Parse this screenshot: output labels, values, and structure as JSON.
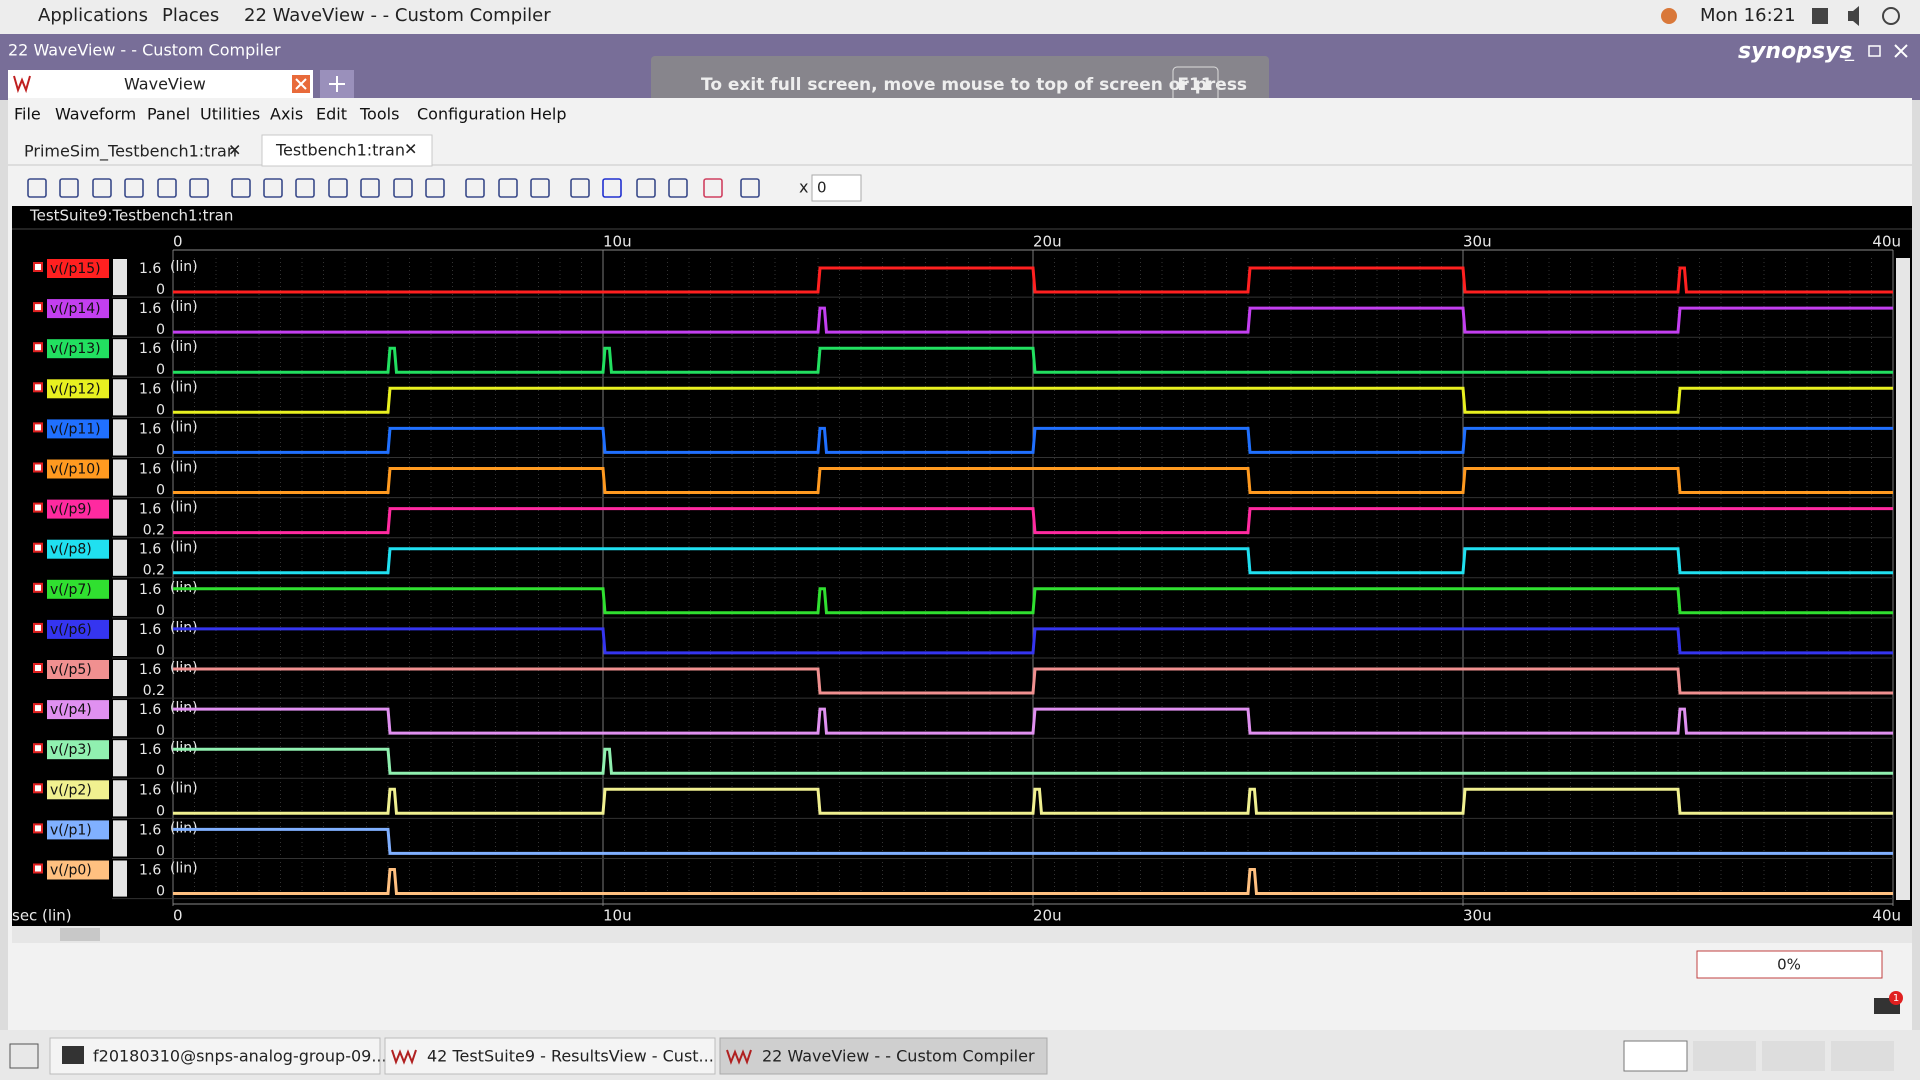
{
  "top_bar": {
    "menus": [
      "Applications",
      "Places",
      "22 WaveView -  - Custom Compiler"
    ],
    "clock": "Mon 16:21"
  },
  "window": {
    "title": "22 WaveView -  - Custom Compiler",
    "brand": "synopsys",
    "tab": "WaveView",
    "fullscreen_hint": "To exit full screen, move mouse to top of screen or press",
    "key": "F11"
  },
  "menu": [
    "File",
    "Waveform",
    "Panel",
    "Utilities",
    "Axis",
    "Edit",
    "Tools",
    "Configuration",
    "Help"
  ],
  "doc_tabs": [
    "PrimeSim_Testbench1:tran",
    "Testbench1:tran"
  ],
  "toolbar": {
    "x_label": "x",
    "x_value": "0"
  },
  "waveform": {
    "header": "TestSuite9:Testbench1:tran",
    "x_axis_label": "sec (lin)",
    "xlim": [
      0,
      40
    ],
    "xticks": [
      0,
      {
        "value": 10,
        "label": "10u"
      },
      {
        "value": 20,
        "label": "20u"
      },
      {
        "value": 30,
        "label": "30u"
      },
      {
        "value": 40,
        "label": "40u"
      }
    ],
    "signals": [
      {
        "name": "v(/p15)",
        "color": "#ff2020",
        "ymax": 1.6,
        "ymin": 0,
        "scale": "(lin)",
        "high": [
          [
            15,
            20
          ],
          [
            25,
            30
          ],
          [
            35,
            35.15
          ]
        ]
      },
      {
        "name": "v(/p14)",
        "color": "#c33ff0",
        "ymax": 1.6,
        "ymin": 0,
        "scale": "(lin)",
        "high": [
          [
            15,
            15.15
          ],
          [
            25,
            30
          ],
          [
            35,
            40
          ]
        ]
      },
      {
        "name": "v(/p13)",
        "color": "#22e060",
        "ymax": 1.6,
        "ymin": 0,
        "scale": "(lin)",
        "high": [
          [
            5,
            5.15
          ],
          [
            10,
            10.15
          ],
          [
            15,
            20
          ]
        ]
      },
      {
        "name": "v(/p12)",
        "color": "#e8f020",
        "ymax": 1.6,
        "ymin": 0,
        "scale": "(lin)",
        "high": [
          [
            5,
            30
          ],
          [
            35,
            40
          ]
        ]
      },
      {
        "name": "v(/p11)",
        "color": "#2070ff",
        "ymax": 1.6,
        "ymin": 0,
        "scale": "(lin)",
        "high": [
          [
            5,
            10
          ],
          [
            15,
            15.15
          ],
          [
            20,
            25
          ],
          [
            30,
            40
          ]
        ]
      },
      {
        "name": "v(/p10)",
        "color": "#ff9a20",
        "ymax": 1.6,
        "ymin": 0,
        "scale": "(lin)",
        "high": [
          [
            5,
            10
          ],
          [
            15,
            25
          ],
          [
            30,
            35
          ]
        ]
      },
      {
        "name": "v(/p9)",
        "color": "#ff2aa0",
        "ymax": 1.6,
        "ymin": 0.2,
        "scale": "(lin)",
        "high": [
          [
            5,
            20
          ],
          [
            25,
            40
          ]
        ]
      },
      {
        "name": "v(/p8)",
        "color": "#20e0f0",
        "ymax": 1.6,
        "ymin": 0.2,
        "scale": "(lin)",
        "high": [
          [
            5,
            25
          ],
          [
            30,
            35
          ]
        ]
      },
      {
        "name": "v(/p7)",
        "color": "#30e030",
        "ymax": 1.6,
        "ymin": 0,
        "scale": "(lin)",
        "high": [
          [
            0,
            10
          ],
          [
            15,
            15.15
          ],
          [
            20,
            35
          ]
        ]
      },
      {
        "name": "v(/p6)",
        "color": "#3535f0",
        "ymax": 1.6,
        "ymin": 0,
        "scale": "(lin)",
        "high": [
          [
            0,
            10
          ],
          [
            20,
            35
          ]
        ]
      },
      {
        "name": "v(/p5)",
        "color": "#f09090",
        "ymax": 1.6,
        "ymin": 0.2,
        "scale": "(lin)",
        "high": [
          [
            0,
            15
          ],
          [
            20,
            35
          ]
        ]
      },
      {
        "name": "v(/p4)",
        "color": "#e090f0",
        "ymax": 1.6,
        "ymin": 0,
        "scale": "(lin)",
        "high": [
          [
            0,
            5
          ],
          [
            15,
            15.15
          ],
          [
            20,
            25
          ],
          [
            35,
            35.15
          ]
        ]
      },
      {
        "name": "v(/p3)",
        "color": "#90f0b0",
        "ymax": 1.6,
        "ymin": 0,
        "scale": "(lin)",
        "high": [
          [
            0,
            5
          ],
          [
            10,
            10.15
          ]
        ]
      },
      {
        "name": "v(/p2)",
        "color": "#f0f090",
        "ymax": 1.6,
        "ymin": 0,
        "scale": "(lin)",
        "high": [
          [
            5,
            5.15
          ],
          [
            10,
            15
          ],
          [
            20,
            20.15
          ],
          [
            25,
            25.15
          ],
          [
            30,
            35
          ]
        ]
      },
      {
        "name": "v(/p1)",
        "color": "#80b0ff",
        "ymax": 1.6,
        "ymin": 0,
        "scale": "(lin)",
        "high": [
          [
            0,
            5
          ]
        ]
      },
      {
        "name": "v(/p0)",
        "color": "#ffc080",
        "ymax": 1.6,
        "ymin": 0,
        "scale": "(lin)",
        "high": [
          [
            5,
            5.15
          ],
          [
            25,
            25.15
          ]
        ]
      }
    ]
  },
  "progress": "0%",
  "taskbar": [
    "f20180310@snps-analog-group-09...",
    "42 TestSuite9 - ResultsView - Cust...",
    "22 WaveView -  - Custom Compiler"
  ],
  "notification_count": "1"
}
